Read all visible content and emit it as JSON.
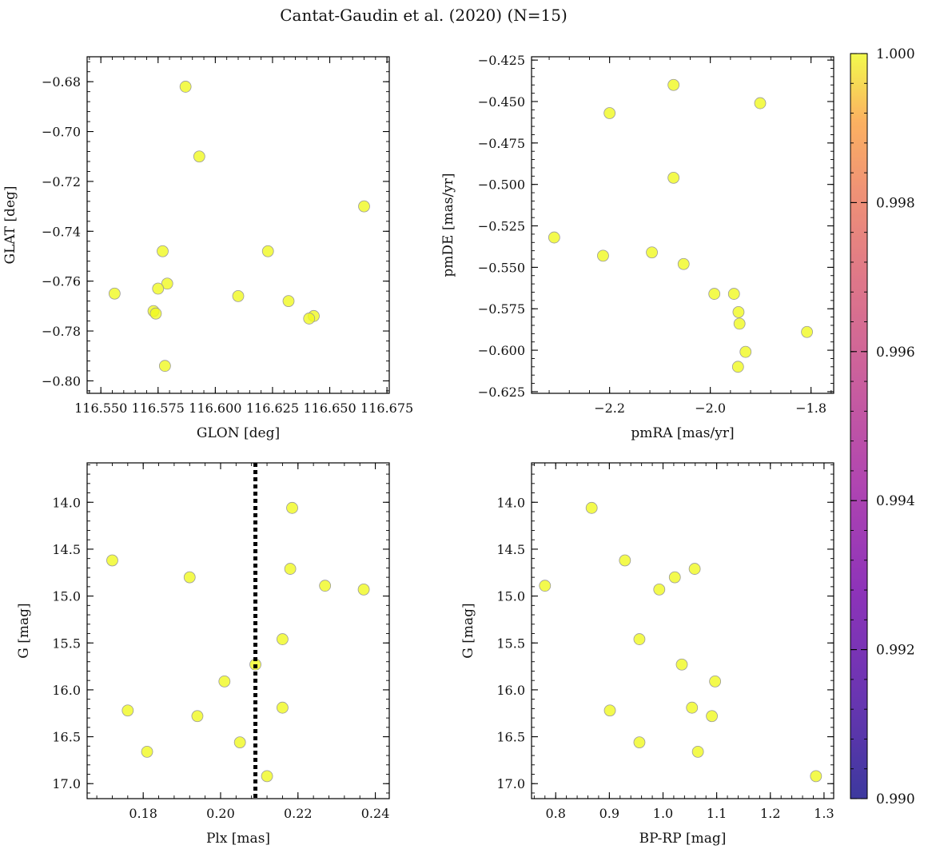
{
  "figure_title": "Cantat-Gaudin et al. (2020) (N=15)",
  "colorbar": {
    "min": 0.99,
    "max": 1.0,
    "tick_labels": [
      "0.990",
      "0.992",
      "0.994",
      "0.996",
      "0.998",
      "1.000"
    ],
    "tick_values": [
      0.99,
      0.992,
      0.994,
      0.996,
      0.998,
      1.0
    ],
    "colormap": "plasma"
  },
  "point_color": "#f0f921",
  "point_edge": "#9a9a9a",
  "chart_data": [
    {
      "id": "pos",
      "type": "scatter",
      "xlabel": "GLON [deg]",
      "ylabel": "GLAT [deg]",
      "xlim": [
        116.544,
        116.676
      ],
      "ylim": [
        -0.805,
        -0.67
      ],
      "invert_y": false,
      "xticks": [
        116.55,
        116.575,
        116.6,
        116.625,
        116.65,
        116.675
      ],
      "xtick_labels": [
        "116.550",
        "116.575",
        "116.600",
        "116.625",
        "116.650",
        "116.675"
      ],
      "yticks": [
        -0.68,
        -0.7,
        -0.72,
        -0.74,
        -0.76,
        -0.78,
        -0.8
      ],
      "ytick_labels": [
        "−0.68",
        "−0.70",
        "−0.72",
        "−0.74",
        "−0.76",
        "−0.78",
        "−0.80"
      ],
      "x": [
        116.587,
        116.593,
        116.665,
        116.577,
        116.623,
        116.579,
        116.556,
        116.575,
        116.61,
        116.632,
        116.573,
        116.574,
        116.643,
        116.641,
        116.578
      ],
      "y": [
        -0.682,
        -0.71,
        -0.73,
        -0.748,
        -0.748,
        -0.761,
        -0.765,
        -0.763,
        -0.766,
        -0.768,
        -0.772,
        -0.773,
        -0.774,
        -0.775,
        -0.794
      ],
      "membership": [
        1,
        1,
        1,
        1,
        1,
        1,
        1,
        1,
        1,
        1,
        1,
        1,
        1,
        1,
        1
      ]
    },
    {
      "id": "pm",
      "type": "scatter",
      "xlabel": "pmRA [mas/yr]",
      "ylabel": "pmDE [mas/yr]",
      "xlim": [
        -2.355,
        -1.755
      ],
      "ylim": [
        -0.626,
        -0.423
      ],
      "invert_y": false,
      "xticks": [
        -2.2,
        -2.0,
        -1.8
      ],
      "xtick_labels": [
        "−2.2",
        "−2.0",
        "−1.8"
      ],
      "yticks": [
        -0.425,
        -0.45,
        -0.475,
        -0.5,
        -0.525,
        -0.55,
        -0.575,
        -0.6,
        -0.625
      ],
      "ytick_labels": [
        "−0.425",
        "−0.450",
        "−0.475",
        "−0.500",
        "−0.525",
        "−0.550",
        "−0.575",
        "−0.600",
        "−0.625"
      ],
      "x": [
        -2.073,
        -1.901,
        -2.2,
        -2.073,
        -2.31,
        -2.213,
        -2.116,
        -2.053,
        -1.992,
        -1.953,
        -1.944,
        -1.942,
        -1.808,
        -1.93,
        -1.945
      ],
      "y": [
        -0.44,
        -0.451,
        -0.457,
        -0.496,
        -0.532,
        -0.543,
        -0.541,
        -0.548,
        -0.566,
        -0.566,
        -0.577,
        -0.584,
        -0.589,
        -0.601,
        -0.61
      ],
      "membership": [
        1,
        1,
        1,
        1,
        1,
        1,
        1,
        1,
        1,
        1,
        1,
        1,
        1,
        1,
        1
      ]
    },
    {
      "id": "plx",
      "type": "scatter",
      "xlabel": "Plx [mas]",
      "ylabel": "G [mag]",
      "xlim": [
        0.1655,
        0.2436
      ],
      "ylim": [
        17.16,
        13.58
      ],
      "invert_y": true,
      "xticks": [
        0.18,
        0.2,
        0.22,
        0.24
      ],
      "xtick_labels": [
        "0.18",
        "0.20",
        "0.22",
        "0.24"
      ],
      "yticks": [
        14.0,
        14.5,
        15.0,
        15.5,
        16.0,
        16.5,
        17.0
      ],
      "ytick_labels": [
        "14.0",
        "14.5",
        "15.0",
        "15.5",
        "16.0",
        "16.5",
        "17.0"
      ],
      "vline": 0.209,
      "x": [
        0.2185,
        0.172,
        0.218,
        0.192,
        0.227,
        0.237,
        0.216,
        0.209,
        0.201,
        0.176,
        0.194,
        0.216,
        0.205,
        0.181,
        0.212
      ],
      "y": [
        14.06,
        14.62,
        14.71,
        14.8,
        14.89,
        14.93,
        15.46,
        15.73,
        15.91,
        16.22,
        16.28,
        16.19,
        16.56,
        16.66,
        16.92
      ],
      "membership": [
        1,
        1,
        1,
        1,
        1,
        1,
        1,
        1,
        1,
        1,
        1,
        1,
        1,
        1,
        1
      ]
    },
    {
      "id": "cmd",
      "type": "scatter",
      "xlabel": "BP-RP [mag]",
      "ylabel": "G [mag]",
      "xlim": [
        0.755,
        1.318
      ],
      "ylim": [
        17.16,
        13.58
      ],
      "invert_y": true,
      "xticks": [
        0.8,
        0.9,
        1.0,
        1.1,
        1.2,
        1.3
      ],
      "xtick_labels": [
        "0.8",
        "0.9",
        "1.0",
        "1.1",
        "1.2",
        "1.3"
      ],
      "yticks": [
        14.0,
        14.5,
        15.0,
        15.5,
        16.0,
        16.5,
        17.0
      ],
      "ytick_labels": [
        "14.0",
        "14.5",
        "15.0",
        "15.5",
        "16.0",
        "16.5",
        "17.0"
      ],
      "x": [
        0.867,
        0.929,
        1.059,
        1.022,
        0.78,
        0.993,
        0.956,
        1.035,
        1.097,
        0.901,
        1.091,
        1.054,
        0.956,
        1.065,
        1.285
      ],
      "y": [
        14.06,
        14.62,
        14.71,
        14.8,
        14.89,
        14.93,
        15.46,
        15.73,
        15.91,
        16.22,
        16.28,
        16.19,
        16.56,
        16.66,
        16.92
      ],
      "membership": [
        1,
        1,
        1,
        1,
        1,
        1,
        1,
        1,
        1,
        1,
        1,
        1,
        1,
        1,
        1
      ]
    }
  ]
}
